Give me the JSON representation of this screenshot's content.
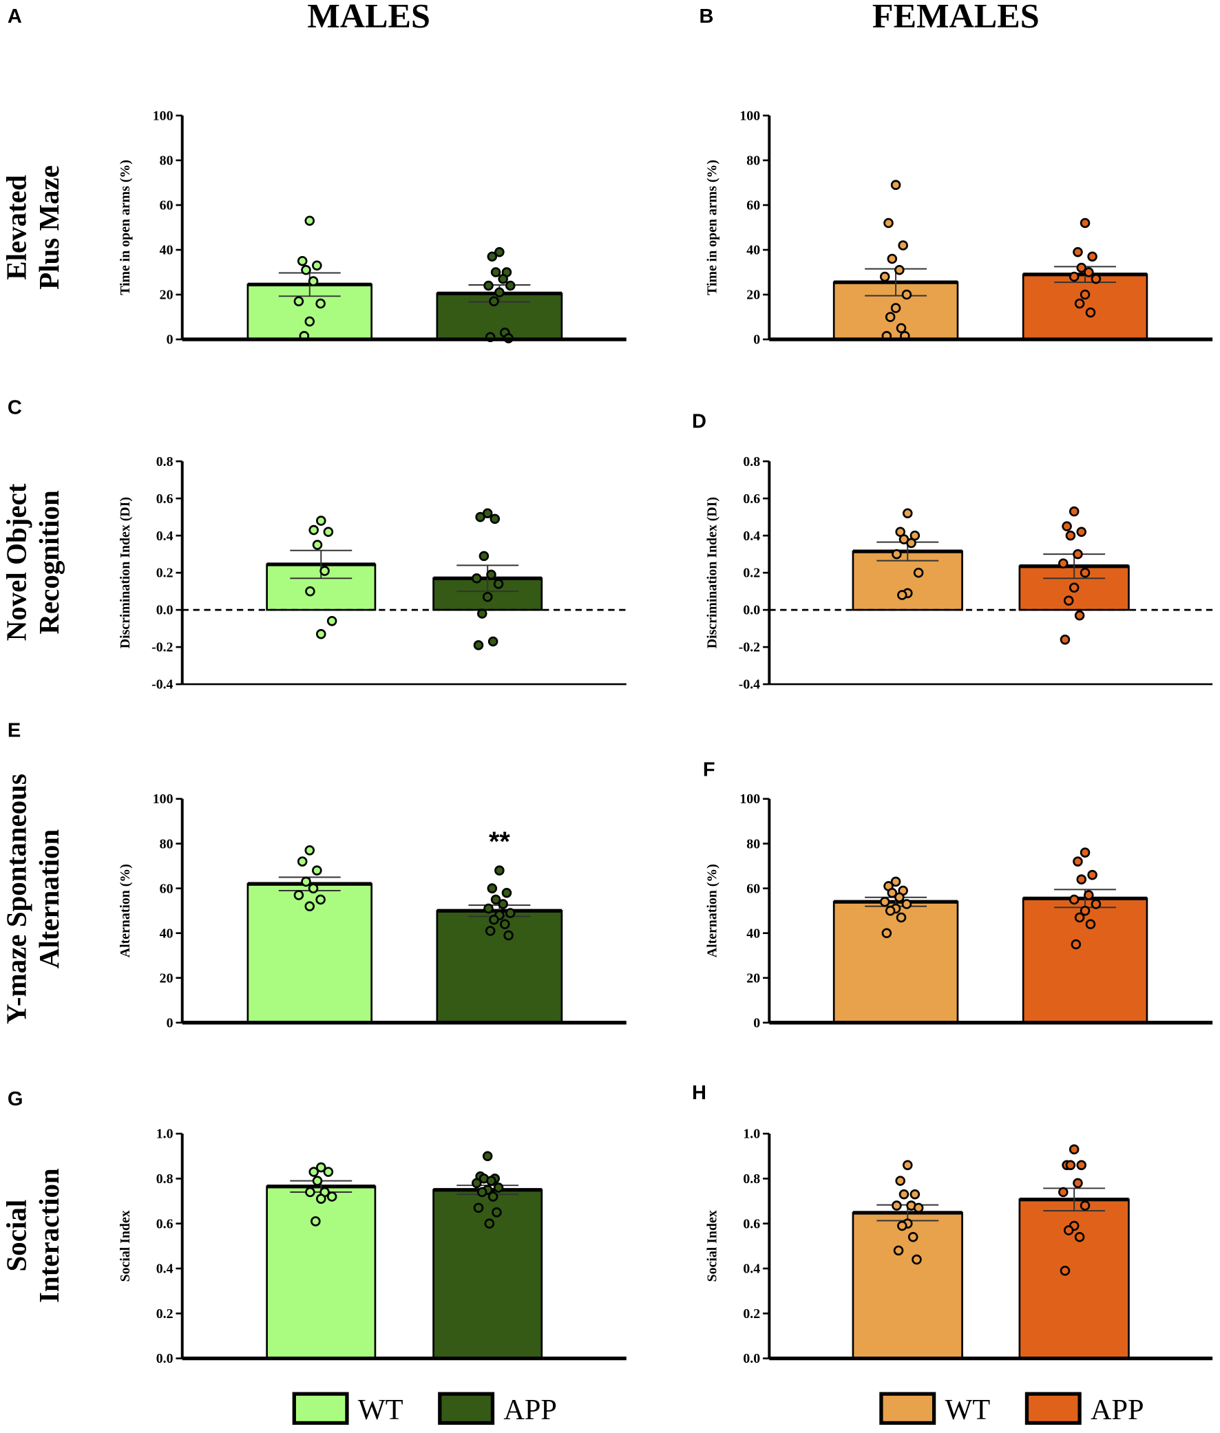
{
  "headers": {
    "males": "MALES",
    "females": "FEMALES"
  },
  "row_labels": [
    [
      "Elevated",
      "Plus Maze"
    ],
    [
      "Novel Object",
      "Recognition"
    ],
    [
      "Y-maze Spontaneous",
      "Alternation"
    ],
    [
      "Social",
      "Interaction"
    ]
  ],
  "colors": {
    "wt_male": "#aafc80",
    "app_male": "#345a16",
    "wt_female": "#e8a24c",
    "app_female": "#e0621a"
  },
  "legends": {
    "males": [
      {
        "label": "WT",
        "color": "#aafc80"
      },
      {
        "label": "APP",
        "color": "#345a16"
      }
    ],
    "females": [
      {
        "label": "WT",
        "color": "#e8a24c"
      },
      {
        "label": "APP",
        "color": "#e0621a"
      }
    ]
  },
  "chart_data": [
    {
      "panel": "A",
      "type": "bar",
      "sex": "males",
      "ylabel": "Time in open arms  (%)",
      "ylim": [
        0,
        100
      ],
      "yticks": [
        "0",
        "20",
        "40",
        "60",
        "80",
        "100"
      ],
      "tickvals": [
        0,
        20,
        40,
        60,
        80,
        100
      ],
      "zero_line": false,
      "series": [
        {
          "name": "WT",
          "mean": 24.5,
          "sem": 5.2,
          "points": [
            53,
            35,
            33,
            31,
            26,
            17,
            16,
            8,
            1.5
          ]
        },
        {
          "name": "APP",
          "mean": 20.5,
          "sem": 3.8,
          "points": [
            39,
            37,
            30,
            30,
            27,
            24,
            24,
            21,
            17,
            3,
            1,
            0.5
          ]
        }
      ]
    },
    {
      "panel": "B",
      "type": "bar",
      "sex": "females",
      "ylabel": "Time in open arms  (%)",
      "ylim": [
        0,
        100
      ],
      "yticks": [
        "0",
        "20",
        "40",
        "60",
        "80",
        "100"
      ],
      "tickvals": [
        0,
        20,
        40,
        60,
        80,
        100
      ],
      "zero_line": false,
      "series": [
        {
          "name": "WT",
          "mean": 25.5,
          "sem": 6.0,
          "points": [
            69,
            52,
            42,
            36,
            31,
            28,
            20,
            14,
            10,
            5,
            1.5,
            1.5
          ]
        },
        {
          "name": "APP",
          "mean": 29,
          "sem": 3.5,
          "points": [
            52,
            39,
            37,
            32,
            30,
            28,
            27,
            20,
            16,
            12
          ]
        }
      ]
    },
    {
      "panel": "C",
      "type": "bar",
      "sex": "males",
      "ylabel": "Discrimination Index (DI)",
      "ylim": [
        -0.4,
        0.8
      ],
      "yticks": [
        "-0.4",
        "-0.2",
        "0.0",
        "0.2",
        "0.4",
        "0.6",
        "0.8"
      ],
      "tickvals": [
        -0.4,
        -0.2,
        0,
        0.2,
        0.4,
        0.6,
        0.8
      ],
      "zero_line": true,
      "series": [
        {
          "name": "WT",
          "mean": 0.245,
          "sem": 0.075,
          "points": [
            0.48,
            0.43,
            0.42,
            0.35,
            0.21,
            0.1,
            -0.06,
            -0.13
          ]
        },
        {
          "name": "APP",
          "mean": 0.17,
          "sem": 0.07,
          "points": [
            0.52,
            0.5,
            0.49,
            0.29,
            0.19,
            0.17,
            0.14,
            0.07,
            -0.02,
            -0.17,
            -0.19
          ]
        }
      ]
    },
    {
      "panel": "D",
      "type": "bar",
      "sex": "females",
      "ylabel": "Discrimination Index (DI)",
      "ylim": [
        -0.4,
        0.8
      ],
      "yticks": [
        "-0.4",
        "-0.2",
        "0.0",
        "0.2",
        "0.4",
        "0.6",
        "0.8"
      ],
      "tickvals": [
        -0.4,
        -0.2,
        0,
        0.2,
        0.4,
        0.6,
        0.8
      ],
      "zero_line": true,
      "series": [
        {
          "name": "WT",
          "mean": 0.315,
          "sem": 0.05,
          "points": [
            0.52,
            0.42,
            0.4,
            0.38,
            0.36,
            0.3,
            0.2,
            0.09,
            0.08
          ]
        },
        {
          "name": "APP",
          "mean": 0.235,
          "sem": 0.065,
          "points": [
            0.53,
            0.45,
            0.42,
            0.4,
            0.3,
            0.25,
            0.2,
            0.12,
            0.05,
            -0.03,
            -0.16
          ]
        }
      ]
    },
    {
      "panel": "E",
      "type": "bar",
      "sex": "males",
      "ylabel": "Alternation (%)",
      "ylim": [
        0,
        100
      ],
      "yticks": [
        "0",
        "20",
        "40",
        "60",
        "80",
        "100"
      ],
      "tickvals": [
        0,
        20,
        40,
        60,
        80,
        100
      ],
      "zero_line": false,
      "annotation": {
        "series": "APP",
        "text": "**"
      },
      "series": [
        {
          "name": "WT",
          "mean": 62,
          "sem": 3,
          "points": [
            77,
            72,
            68,
            63,
            60,
            57,
            55,
            52
          ]
        },
        {
          "name": "APP",
          "mean": 50,
          "sem": 2.5,
          "points": [
            68,
            60,
            58,
            55,
            53,
            51,
            49,
            48,
            46,
            44,
            41,
            39
          ]
        }
      ]
    },
    {
      "panel": "F",
      "type": "bar",
      "sex": "females",
      "ylabel": "Alternation (%)",
      "ylim": [
        0,
        100
      ],
      "yticks": [
        "0",
        "20",
        "40",
        "60",
        "80",
        "100"
      ],
      "tickvals": [
        0,
        20,
        40,
        60,
        80,
        100
      ],
      "zero_line": false,
      "series": [
        {
          "name": "WT",
          "mean": 54,
          "sem": 2,
          "points": [
            63,
            61,
            59,
            58,
            56,
            54,
            53,
            51,
            50,
            47,
            40
          ]
        },
        {
          "name": "APP",
          "mean": 55.5,
          "sem": 4,
          "points": [
            76,
            72,
            66,
            64,
            57,
            55,
            53,
            50,
            47,
            44,
            35
          ]
        }
      ]
    },
    {
      "panel": "G",
      "type": "bar",
      "sex": "males",
      "ylabel": "Social Index",
      "ylim": [
        0,
        1.0
      ],
      "yticks": [
        "0.0",
        "0.2",
        "0.4",
        "0.6",
        "0.8",
        "1.0"
      ],
      "tickvals": [
        0,
        0.2,
        0.4,
        0.6,
        0.8,
        1.0
      ],
      "zero_line": false,
      "series": [
        {
          "name": "WT",
          "mean": 0.765,
          "sem": 0.025,
          "points": [
            0.85,
            0.83,
            0.83,
            0.79,
            0.74,
            0.74,
            0.72,
            0.71,
            0.61
          ]
        },
        {
          "name": "APP",
          "mean": 0.75,
          "sem": 0.02,
          "points": [
            0.9,
            0.81,
            0.8,
            0.8,
            0.79,
            0.78,
            0.76,
            0.75,
            0.74,
            0.72,
            0.67,
            0.65,
            0.6
          ]
        }
      ]
    },
    {
      "panel": "H",
      "type": "bar",
      "sex": "females",
      "ylabel": "Social Index",
      "ylim": [
        0,
        1.0
      ],
      "yticks": [
        "0.0",
        "0.2",
        "0.4",
        "0.6",
        "0.8",
        "1.0"
      ],
      "tickvals": [
        0,
        0.2,
        0.4,
        0.6,
        0.8,
        1.0
      ],
      "zero_line": false,
      "series": [
        {
          "name": "WT",
          "mean": 0.648,
          "sem": 0.035,
          "points": [
            0.86,
            0.79,
            0.73,
            0.73,
            0.68,
            0.68,
            0.67,
            0.6,
            0.59,
            0.54,
            0.48,
            0.44
          ]
        },
        {
          "name": "APP",
          "mean": 0.707,
          "sem": 0.05,
          "points": [
            0.93,
            0.86,
            0.86,
            0.86,
            0.78,
            0.74,
            0.68,
            0.59,
            0.57,
            0.54,
            0.39
          ]
        }
      ]
    }
  ]
}
